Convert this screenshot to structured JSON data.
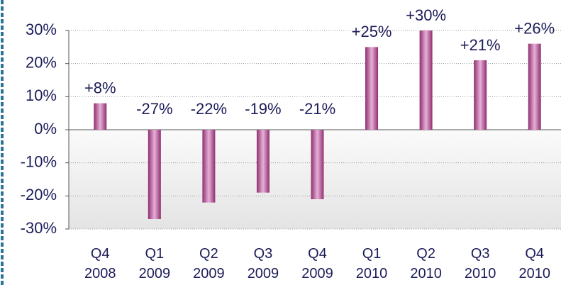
{
  "chart_data": {
    "type": "bar",
    "categories": [
      "Q4 2008",
      "Q1 2009",
      "Q2 2009",
      "Q3 2009",
      "Q4 2009",
      "Q1 2010",
      "Q2 2010",
      "Q3 2010",
      "Q4 2010"
    ],
    "values": [
      8,
      -27,
      -22,
      -19,
      -21,
      25,
      30,
      21,
      26
    ],
    "value_labels": [
      "+8%",
      "-27%",
      "-22%",
      "-19%",
      "-21%",
      "+25%",
      "+30%",
      "+21%",
      "+26%"
    ],
    "color": "#a8437f",
    "ylim": [
      -30,
      30
    ],
    "yticks": [
      {
        "value": -30,
        "label": "-30%"
      },
      {
        "value": -20,
        "label": "-20%"
      },
      {
        "value": -10,
        "label": "-10%"
      },
      {
        "value": 0,
        "label": "0%"
      },
      {
        "value": 10,
        "label": "10%"
      },
      {
        "value": 20,
        "label": "20%"
      },
      {
        "value": 30,
        "label": "30%"
      }
    ],
    "grid": true
  }
}
